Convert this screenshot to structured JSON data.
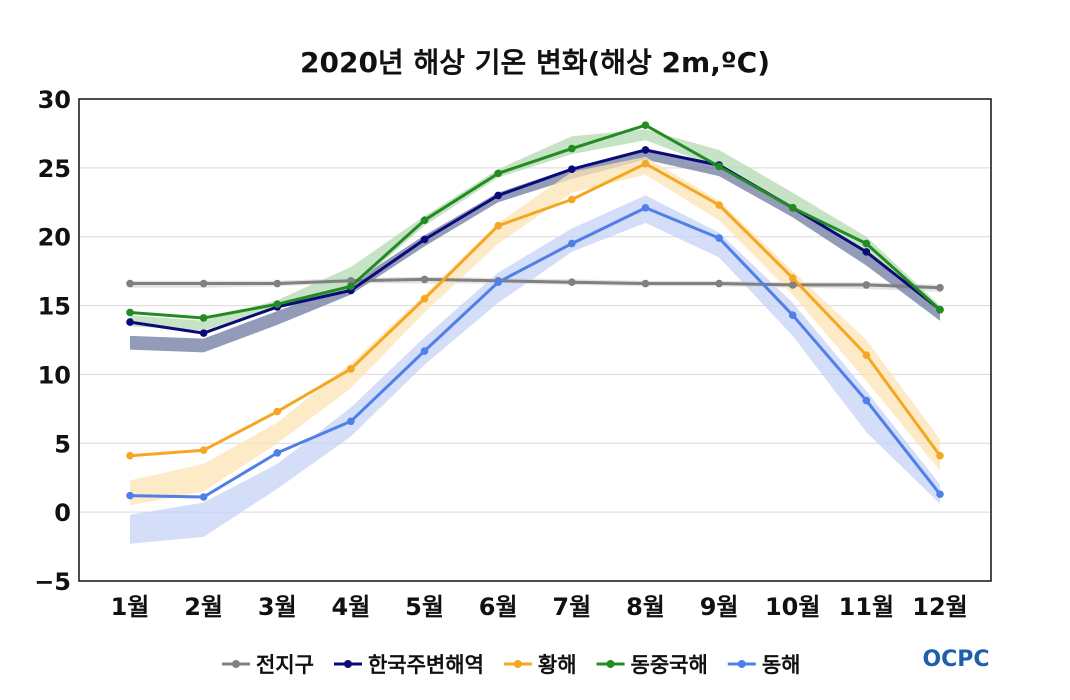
{
  "chart_data": {
    "type": "line",
    "title": "2020년 해상 기온 변화(해상 2m,ºC)",
    "categories": [
      "1월",
      "2월",
      "3월",
      "4월",
      "5월",
      "6월",
      "7월",
      "8월",
      "9월",
      "10월",
      "11월",
      "12월"
    ],
    "ylim": [
      -5,
      30
    ],
    "yticks": [
      "−5",
      "0",
      "5",
      "10",
      "15",
      "20",
      "25",
      "30"
    ],
    "ytick_values": [
      -5,
      0,
      5,
      10,
      15,
      20,
      25,
      30
    ],
    "grid": "horizontal",
    "legend_position": "bottom",
    "series": [
      {
        "name": "전지구",
        "color": "#808080",
        "values": [
          16.6,
          16.6,
          16.6,
          16.8,
          16.9,
          16.8,
          16.7,
          16.6,
          16.6,
          16.5,
          16.5,
          16.3
        ],
        "band_color": "#d9d9d9",
        "band_lower": [
          16.3,
          16.3,
          16.4,
          16.6,
          16.6,
          16.6,
          16.5,
          16.4,
          16.4,
          16.3,
          16.2,
          16.0
        ],
        "band_upper": [
          16.8,
          16.8,
          16.8,
          17.0,
          17.1,
          17.0,
          16.9,
          16.8,
          16.8,
          16.7,
          16.7,
          16.5
        ]
      },
      {
        "name": "한국주변해역",
        "color": "#0a0a78",
        "values": [
          13.8,
          13.0,
          14.9,
          16.1,
          19.8,
          23.0,
          24.9,
          26.3,
          25.2,
          22.1,
          18.9,
          14.7
        ],
        "band_color": "#6e7aa0",
        "band_lower": [
          11.8,
          11.6,
          13.6,
          15.8,
          19.3,
          22.5,
          24.2,
          25.6,
          24.4,
          21.4,
          17.9,
          13.9
        ],
        "band_upper": [
          12.8,
          12.6,
          14.6,
          16.6,
          20.1,
          23.2,
          25.0,
          26.2,
          25.2,
          22.2,
          18.9,
          14.9
        ]
      },
      {
        "name": "황해",
        "color": "#f5a623",
        "values": [
          4.1,
          4.5,
          7.3,
          10.4,
          15.5,
          20.8,
          22.7,
          25.3,
          22.3,
          17.0,
          11.4,
          4.1
        ],
        "band_color": "#fce3b3",
        "band_lower": [
          0.5,
          1.5,
          5.0,
          9.0,
          14.5,
          19.5,
          23.2,
          24.5,
          21.2,
          15.8,
          9.5,
          3.0
        ],
        "band_upper": [
          2.3,
          3.5,
          6.5,
          10.8,
          15.8,
          21.0,
          24.7,
          25.8,
          22.6,
          17.5,
          12.5,
          5.3
        ]
      },
      {
        "name": "동중국해",
        "color": "#228b22",
        "values": [
          14.5,
          14.1,
          15.1,
          16.4,
          21.2,
          24.6,
          26.4,
          28.1,
          25.1,
          22.1,
          19.5,
          14.7
        ],
        "band_color": "#b3d9b3",
        "band_lower": [
          13.5,
          13.2,
          14.8,
          16.2,
          20.8,
          24.3,
          26.0,
          27.0,
          25.0,
          22.0,
          19.0,
          14.5
        ],
        "band_upper": [
          14.3,
          13.9,
          15.4,
          17.8,
          21.5,
          24.9,
          27.3,
          27.8,
          26.3,
          23.2,
          20.0,
          15.0
        ]
      },
      {
        "name": "동해",
        "color": "#4f7fe8",
        "values": [
          1.2,
          1.1,
          4.3,
          6.6,
          11.7,
          16.7,
          19.5,
          22.1,
          19.9,
          14.3,
          8.1,
          1.3
        ],
        "band_color": "#c5d3f7",
        "band_lower": [
          -2.3,
          -1.8,
          1.7,
          5.5,
          10.7,
          15.2,
          18.9,
          21.0,
          18.5,
          12.8,
          5.8,
          0.6
        ],
        "band_upper": [
          -0.2,
          0.7,
          3.5,
          7.6,
          12.7,
          17.4,
          20.6,
          23.0,
          20.3,
          15.2,
          8.8,
          2.0
        ]
      }
    ]
  },
  "logo": {
    "text": "OCPC",
    "colors": [
      "#1f5fa8",
      "#2e9fd6"
    ]
  }
}
